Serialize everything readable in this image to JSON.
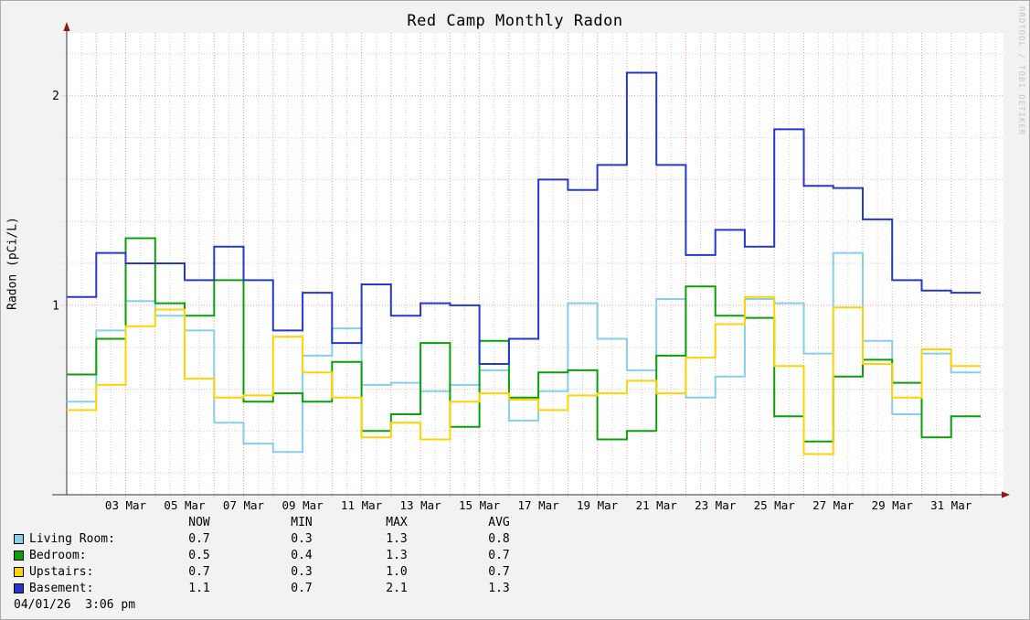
{
  "title": "Red Camp Monthly Radon",
  "y_axis_label": "Radon (pCi/L)",
  "watermark": "RRDTOOL / TOBI OETIKER",
  "legend": {
    "headers": [
      "NOW",
      "MIN",
      "MAX",
      "AVG"
    ],
    "rows": [
      {
        "label": "Living Room:",
        "color": "#87CEEB",
        "now": "0.7",
        "min": "0.3",
        "max": "1.3",
        "avg": "0.8"
      },
      {
        "label": "Bedroom:",
        "color": "#0AA00A",
        "now": "0.5",
        "min": "0.4",
        "max": "1.3",
        "avg": "0.7"
      },
      {
        "label": "Upstairs:",
        "color": "#FFD300",
        "now": "0.7",
        "min": "0.3",
        "max": "1.0",
        "avg": "0.7"
      },
      {
        "label": "Basement:",
        "color": "#2438CC",
        "now": "1.1",
        "min": "0.7",
        "max": "2.1",
        "avg": "1.3"
      }
    ],
    "timestamp": "04/01/26  3:06 pm"
  },
  "chart_data": {
    "type": "line",
    "step": true,
    "title": "Red Camp Monthly Radon",
    "ylabel": "Radon (pCi/L)",
    "ylim": [
      0.096,
      2.3
    ],
    "y_major_ticks": [
      1,
      2
    ],
    "y_minor_step": 0.2,
    "x_days": 31,
    "x_range": "01 Mar - 31 Mar",
    "x_tick_labels": [
      {
        "day": 3,
        "label": "03 Mar"
      },
      {
        "day": 5,
        "label": "05 Mar"
      },
      {
        "day": 7,
        "label": "07 Mar"
      },
      {
        "day": 9,
        "label": "09 Mar"
      },
      {
        "day": 11,
        "label": "11 Mar"
      },
      {
        "day": 13,
        "label": "13 Mar"
      },
      {
        "day": 15,
        "label": "15 Mar"
      },
      {
        "day": 17,
        "label": "17 Mar"
      },
      {
        "day": 19,
        "label": "19 Mar"
      },
      {
        "day": 21,
        "label": "21 Mar"
      },
      {
        "day": 23,
        "label": "23 Mar"
      },
      {
        "day": 25,
        "label": "25 Mar"
      },
      {
        "day": 27,
        "label": "27 Mar"
      },
      {
        "day": 29,
        "label": "29 Mar"
      },
      {
        "day": 31,
        "label": "31 Mar"
      }
    ],
    "grid": {
      "on": true,
      "major_color": "#F09B9B",
      "minor_color": "#CFCFCF"
    },
    "axis_color": "#333333",
    "arrow_color": "#8B1A1A",
    "plot_bg": "#FFFFFF",
    "legend_position": "bottom",
    "series": [
      {
        "name": "Living Room",
        "color": "#87CEEB",
        "values": [
          0.54,
          0.88,
          1.02,
          0.95,
          0.88,
          0.44,
          0.34,
          0.3,
          0.76,
          0.89,
          0.62,
          0.63,
          0.59,
          0.62,
          0.69,
          0.45,
          0.59,
          1.01,
          0.84,
          0.69,
          1.03,
          0.56,
          0.66,
          1.03,
          1.01,
          0.77,
          1.25,
          0.83,
          0.48,
          0.77,
          0.68
        ]
      },
      {
        "name": "Bedroom",
        "color": "#0AA00A",
        "values": [
          0.67,
          0.84,
          1.32,
          1.01,
          0.95,
          1.12,
          0.54,
          0.58,
          0.54,
          0.73,
          0.4,
          0.48,
          0.82,
          0.42,
          0.83,
          0.56,
          0.68,
          0.69,
          0.36,
          0.4,
          0.76,
          1.09,
          0.95,
          0.94,
          0.47,
          0.35,
          0.66,
          0.74,
          0.63,
          0.37,
          0.47
        ]
      },
      {
        "name": "Upstairs",
        "color": "#FFD300",
        "values": [
          0.5,
          0.62,
          0.9,
          0.98,
          0.65,
          0.56,
          0.57,
          0.85,
          0.68,
          0.56,
          0.37,
          0.44,
          0.36,
          0.54,
          0.58,
          0.55,
          0.5,
          0.57,
          0.58,
          0.64,
          0.58,
          0.75,
          0.91,
          1.04,
          0.71,
          0.29,
          0.99,
          0.72,
          0.56,
          0.79,
          0.71
        ]
      },
      {
        "name": "Basement",
        "color": "#2438CC",
        "values": [
          1.04,
          1.25,
          1.2,
          1.2,
          1.12,
          1.28,
          1.12,
          0.88,
          1.06,
          0.82,
          1.1,
          0.95,
          1.01,
          1.0,
          0.72,
          0.84,
          1.6,
          1.55,
          1.67,
          2.11,
          1.67,
          1.24,
          1.36,
          1.28,
          1.84,
          1.57,
          1.56,
          1.41,
          1.12,
          1.07,
          1.06
        ]
      }
    ]
  }
}
